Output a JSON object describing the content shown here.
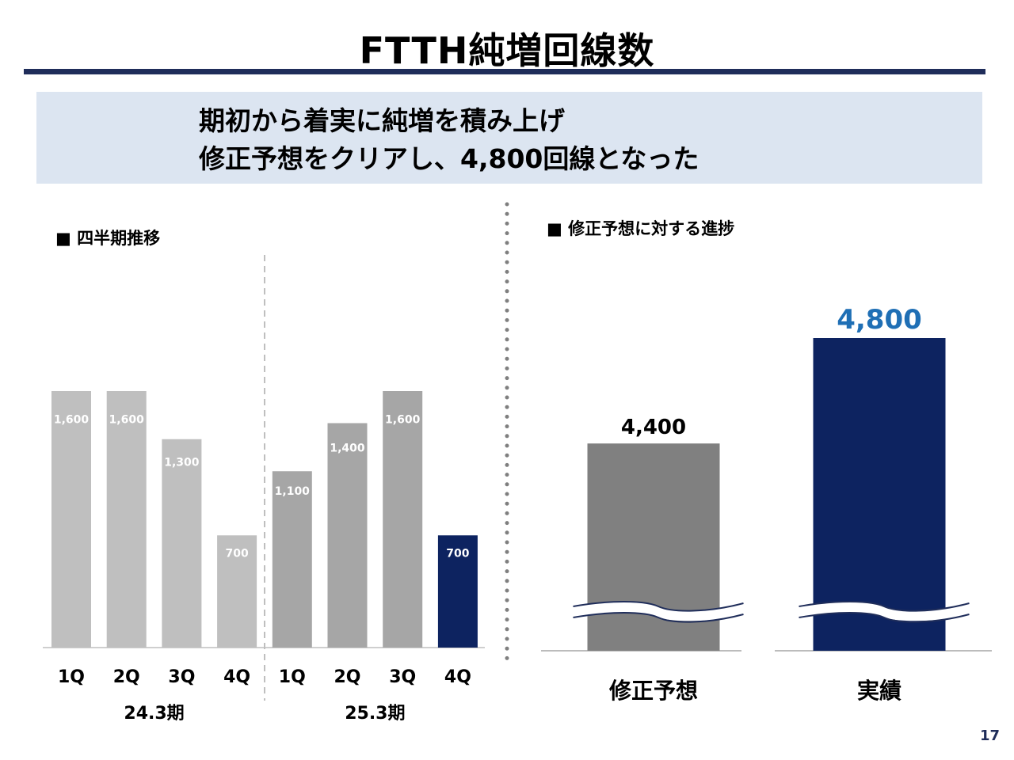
{
  "slide": {
    "title": "FTTH純増回線数",
    "summary_line1": "期初から着実に純増を積み上げ",
    "summary_line2": "修正予想をクリアし、4,800回線となった",
    "page_number": "17"
  },
  "chart_data": [
    {
      "type": "bar",
      "title": "■ 四半期推移",
      "categories": [
        "1Q",
        "2Q",
        "3Q",
        "4Q",
        "1Q",
        "2Q",
        "3Q",
        "4Q"
      ],
      "groups": [
        {
          "label": "24.3期",
          "count": 4
        },
        {
          "label": "25.3期",
          "count": 4
        }
      ],
      "values": [
        1600,
        1600,
        1300,
        700,
        1100,
        1400,
        1600,
        700
      ],
      "value_labels": [
        "1,600",
        "1,600",
        "1,300",
        "700",
        "1,100",
        "1,400",
        "1,600",
        "700"
      ],
      "colors": [
        "#bfbfbf",
        "#bfbfbf",
        "#bfbfbf",
        "#bfbfbf",
        "#a6a6a6",
        "#a6a6a6",
        "#a6a6a6",
        "#0d2360"
      ],
      "ylim": [
        0,
        1600
      ]
    },
    {
      "type": "bar",
      "title": "■ 修正予想に対する進捗",
      "categories": [
        "修正予想",
        "実績"
      ],
      "values": [
        4400,
        4800
      ],
      "value_labels": [
        "4,400",
        "4,800"
      ],
      "colors": [
        "#808080",
        "#0d2360"
      ],
      "label_colors": [
        "#000000",
        "#1f6fb5"
      ],
      "axis_break": true
    }
  ]
}
